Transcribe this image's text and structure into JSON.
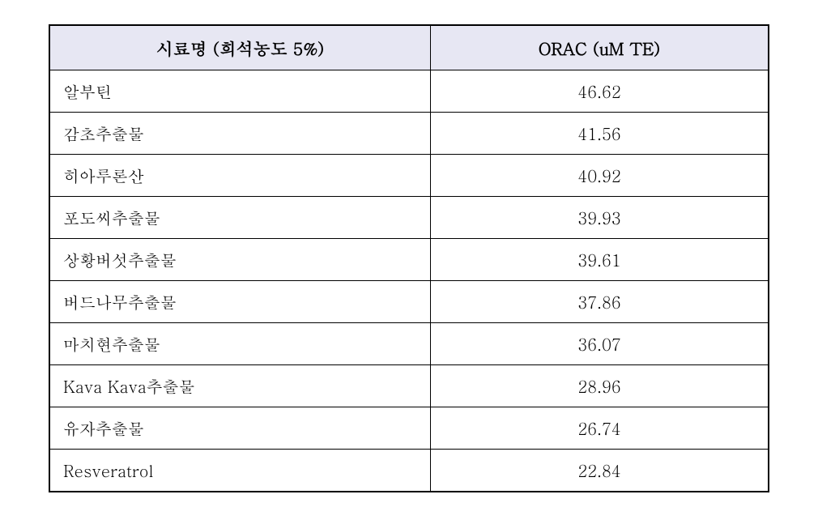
{
  "orac_table": {
    "type": "table",
    "header_bg": "#e7e7f3",
    "border_color": "#000000",
    "columns": [
      {
        "label": "시료명 (희석농도 5%)",
        "align": "left"
      },
      {
        "label": "ORAC (uM TE)",
        "align": "center"
      }
    ],
    "rows": [
      {
        "name": "알부틴",
        "value": "46.62"
      },
      {
        "name": "감초추출물",
        "value": "41.56"
      },
      {
        "name": "히아루론산",
        "value": "40.92"
      },
      {
        "name": "포도씨추출물",
        "value": "39.93"
      },
      {
        "name": "상황버섯추출물",
        "value": "39.61"
      },
      {
        "name": "버드나무추출물",
        "value": "37.86"
      },
      {
        "name": "마치현추출물",
        "value": "36.07"
      },
      {
        "name": "Kava Kava추출물",
        "value": "28.96"
      },
      {
        "name": "유자추출물",
        "value": "26.74"
      },
      {
        "name": "Resveratrol",
        "value": "22.84"
      }
    ]
  }
}
